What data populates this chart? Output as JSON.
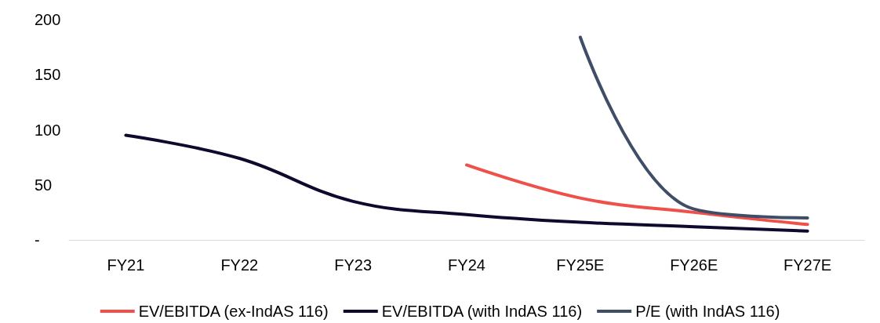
{
  "chart_data": {
    "type": "line",
    "categories": [
      "FY21",
      "FY22",
      "FY23",
      "FY24",
      "FY25E",
      "FY26E",
      "FY27E"
    ],
    "series": [
      {
        "name": "EV/EBITDA (ex-IndAS 116)",
        "color": "#f0504a",
        "values": [
          null,
          null,
          null,
          68,
          38,
          25,
          14
        ]
      },
      {
        "name": "EV/EBITDA (with IndAS 116)",
        "color": "#0d0a2e",
        "values": [
          95,
          74,
          35,
          23,
          16,
          12,
          8
        ]
      },
      {
        "name": "P/E (with IndAS 116)",
        "color": "#3f4e66",
        "values": [
          null,
          null,
          null,
          null,
          184,
          28,
          20
        ]
      }
    ],
    "ylim": [
      0,
      200
    ],
    "yticks": [
      {
        "value": 0,
        "label": "-"
      },
      50,
      100,
      150,
      200
    ],
    "grid": false,
    "legend": "bottom",
    "marker": "none",
    "line_style": "solid"
  }
}
